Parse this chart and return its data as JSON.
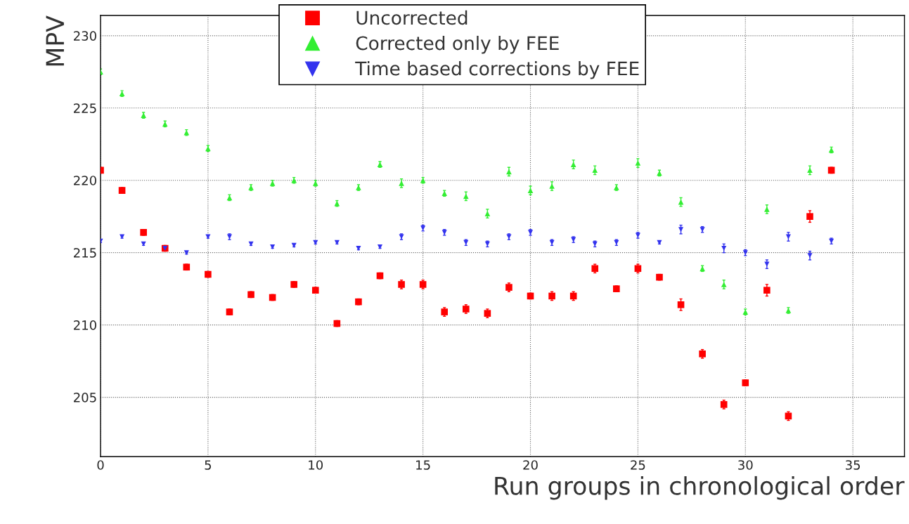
{
  "chart_data": {
    "type": "scatter",
    "xlabel": "Run groups in chronological order",
    "ylabel": "MPV",
    "x": [
      0,
      1,
      2,
      3,
      4,
      5,
      6,
      7,
      8,
      9,
      10,
      11,
      12,
      13,
      14,
      15,
      16,
      17,
      18,
      19,
      20,
      21,
      22,
      23,
      24,
      25,
      26,
      27,
      28,
      29,
      30,
      31,
      32,
      33,
      34
    ],
    "series": [
      {
        "name": "Uncorrected",
        "color": "#ff0000",
        "marker": "square",
        "values": [
          220.7,
          219.3,
          216.4,
          215.3,
          214.0,
          213.5,
          210.9,
          212.1,
          211.9,
          212.8,
          212.4,
          210.1,
          211.6,
          213.4,
          212.8,
          212.8,
          210.9,
          211.1,
          210.8,
          212.6,
          212.0,
          212.0,
          212.0,
          213.9,
          212.5,
          213.9,
          213.3,
          211.4,
          208.0,
          204.5,
          206.0,
          212.4,
          203.7,
          217.5,
          220.7
        ],
        "errors": [
          0.2,
          0.2,
          0.2,
          0.2,
          0.2,
          0.2,
          0.2,
          0.2,
          0.2,
          0.2,
          0.2,
          0.2,
          0.2,
          0.2,
          0.3,
          0.3,
          0.3,
          0.3,
          0.3,
          0.3,
          0.2,
          0.3,
          0.3,
          0.3,
          0.2,
          0.3,
          0.2,
          0.4,
          0.3,
          0.3,
          0.2,
          0.4,
          0.3,
          0.4,
          0.2
        ]
      },
      {
        "name": "Corrected only by FEE",
        "color": "#33ee33",
        "marker": "triangle",
        "values": [
          227.5,
          226.0,
          224.5,
          223.9,
          223.3,
          222.2,
          218.8,
          219.5,
          219.8,
          220.0,
          219.8,
          218.4,
          219.5,
          221.1,
          219.8,
          220.0,
          219.1,
          218.9,
          217.7,
          220.6,
          219.3,
          219.6,
          221.1,
          220.7,
          219.5,
          221.2,
          220.5,
          218.5,
          213.9,
          212.8,
          210.9,
          218.0,
          211.0,
          220.7,
          222.1
        ],
        "errors": [
          0.2,
          0.2,
          0.2,
          0.2,
          0.2,
          0.2,
          0.2,
          0.2,
          0.2,
          0.2,
          0.2,
          0.2,
          0.2,
          0.2,
          0.3,
          0.2,
          0.2,
          0.3,
          0.3,
          0.3,
          0.3,
          0.3,
          0.3,
          0.3,
          0.2,
          0.3,
          0.2,
          0.3,
          0.2,
          0.3,
          0.2,
          0.3,
          0.2,
          0.3,
          0.2
        ]
      },
      {
        "name": "Time based corrections by FEE",
        "color": "#3333ee",
        "marker": "triangle_down",
        "values": [
          215.8,
          216.1,
          215.6,
          215.3,
          215.0,
          216.1,
          216.1,
          215.6,
          215.4,
          215.5,
          215.7,
          215.7,
          215.3,
          215.4,
          216.1,
          216.7,
          216.4,
          215.7,
          215.6,
          216.1,
          216.4,
          215.7,
          215.9,
          215.6,
          215.7,
          216.2,
          215.7,
          216.6,
          216.6,
          215.3,
          215.0,
          214.2,
          216.1,
          214.8,
          215.8
        ],
        "errors": [
          0.1,
          0.1,
          0.1,
          0.1,
          0.1,
          0.1,
          0.2,
          0.1,
          0.1,
          0.1,
          0.1,
          0.1,
          0.1,
          0.1,
          0.2,
          0.2,
          0.2,
          0.2,
          0.2,
          0.2,
          0.2,
          0.2,
          0.2,
          0.2,
          0.2,
          0.2,
          0.1,
          0.3,
          0.2,
          0.3,
          0.2,
          0.3,
          0.3,
          0.3,
          0.2
        ]
      }
    ],
    "xlim": [
      0,
      37.4
    ],
    "ylim": [
      200.9,
      231.4
    ],
    "xticks": [
      0,
      5,
      10,
      15,
      20,
      25,
      30,
      35
    ],
    "yticks": [
      205,
      210,
      215,
      220,
      225,
      230
    ],
    "grid": true,
    "legend": "top"
  }
}
